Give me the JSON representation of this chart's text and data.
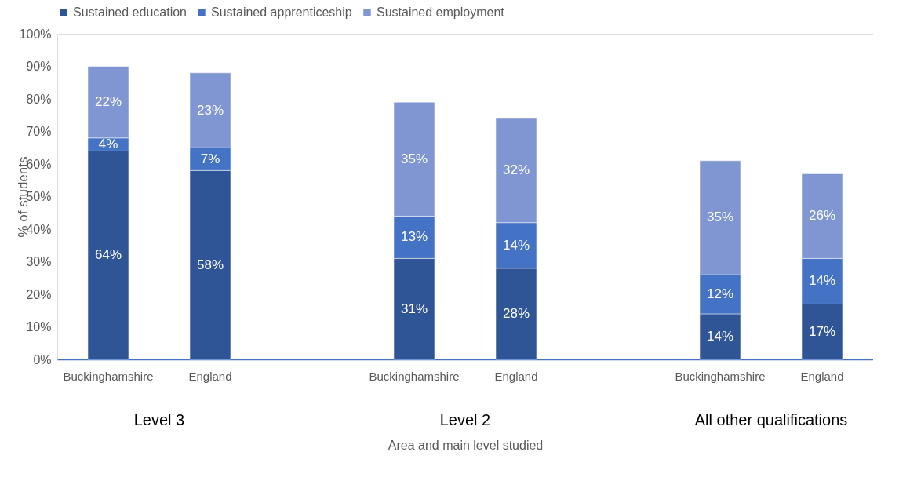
{
  "chart_data": {
    "type": "bar",
    "stacked": true,
    "categories": [
      "Buckinghamshire",
      "England",
      "Buckinghamshire",
      "England",
      "Buckinghamshire",
      "England"
    ],
    "series": [
      {
        "name": "Sustained education",
        "color": "#2f5597",
        "values": [
          64,
          58,
          31,
          28,
          14,
          17
        ],
        "value_labels": [
          "64%",
          "58%",
          "31%",
          "28%",
          "14%",
          "17%"
        ]
      },
      {
        "name": "Sustained apprenticeship",
        "color": "#4472c4",
        "values": [
          4,
          7,
          13,
          14,
          12,
          14
        ],
        "value_labels": [
          "4%",
          "7%",
          "13%",
          "14%",
          "12%",
          "14%"
        ]
      },
      {
        "name": "Sustained employment",
        "color": "#7f96d3",
        "values": [
          22,
          23,
          35,
          32,
          35,
          26
        ],
        "value_labels": [
          "22%",
          "23%",
          "35%",
          "32%",
          "35%",
          "26%"
        ]
      }
    ],
    "annotations": [
      "Level 3",
      "Level 2",
      "All other qualifications"
    ],
    "xlabel": "Area and main level studied",
    "ylabel": "% of students",
    "ylim": [
      0,
      100
    ],
    "yticks": [
      {
        "value": 0,
        "label": "0%"
      },
      {
        "value": 10,
        "label": "10%"
      },
      {
        "value": 20,
        "label": "20%"
      },
      {
        "value": 30,
        "label": "30%"
      },
      {
        "value": 40,
        "label": "40%"
      },
      {
        "value": 50,
        "label": "50%"
      },
      {
        "value": 60,
        "label": "60%"
      },
      {
        "value": 70,
        "label": "70%"
      },
      {
        "value": 80,
        "label": "80%"
      },
      {
        "value": 90,
        "label": "90%"
      },
      {
        "value": 100,
        "label": "100%"
      }
    ],
    "grid": false,
    "legend": "top"
  }
}
